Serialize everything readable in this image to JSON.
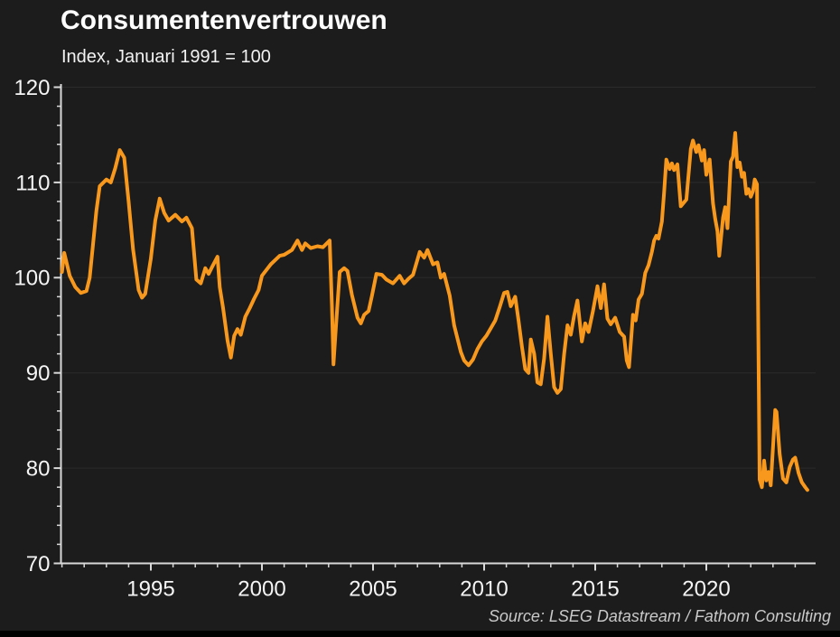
{
  "header": {
    "title": "Consumentenvertrouwen",
    "subtitle": "Index, Januari 1991 = 100"
  },
  "footer": {
    "source": "Source: LSEG Datastream / Fathom Consulting"
  },
  "colors": {
    "background": "#1c1c1c",
    "line": "#F8991D",
    "axis": "#d9d9d9",
    "grid": "#2b2b2b",
    "tick_label": "#f5f5f5",
    "title_text": "#ffffff",
    "source_text": "#c9c9c9",
    "bottom_bar": "#000000"
  },
  "chart_data": {
    "type": "line",
    "title": "Consumentenvertrouwen",
    "subtitle": "Index, Januari 1991 = 100",
    "source": "Source: LSEG Datastream / Fathom Consulting",
    "legend": "none",
    "grid": "faint horizontal lines at major y ticks",
    "x_axis": {
      "range": [
        1991,
        2025
      ],
      "major_ticks": [
        1995,
        2000,
        2005,
        2010,
        2015,
        2020
      ],
      "minor_tick_step_years": 1
    },
    "y_axis": {
      "labeled_range": [
        70,
        120
      ],
      "major_ticks": [
        70,
        80,
        90,
        100,
        110,
        120
      ],
      "minor_tick_step": 2
    },
    "series": [
      {
        "name": "Consumentenvertrouwen (index, Januari 1991 = 100)",
        "color": "#F8991D",
        "points": [
          [
            1991.0,
            100.6
          ],
          [
            1991.1,
            102.6
          ],
          [
            1991.35,
            100.2
          ],
          [
            1991.6,
            99.0
          ],
          [
            1991.85,
            98.4
          ],
          [
            1992.1,
            98.6
          ],
          [
            1992.25,
            100.0
          ],
          [
            1992.4,
            103.5
          ],
          [
            1992.55,
            107.0
          ],
          [
            1992.7,
            109.6
          ],
          [
            1993.0,
            110.3
          ],
          [
            1993.2,
            110.0
          ],
          [
            1993.4,
            111.5
          ],
          [
            1993.6,
            113.4
          ],
          [
            1993.8,
            112.6
          ],
          [
            1994.0,
            108.0
          ],
          [
            1994.2,
            103.0
          ],
          [
            1994.45,
            98.7
          ],
          [
            1994.6,
            97.9
          ],
          [
            1994.75,
            98.3
          ],
          [
            1995.0,
            102.0
          ],
          [
            1995.2,
            106.0
          ],
          [
            1995.4,
            108.3
          ],
          [
            1995.6,
            106.8
          ],
          [
            1995.8,
            106.0
          ],
          [
            1996.1,
            106.6
          ],
          [
            1996.4,
            105.9
          ],
          [
            1996.6,
            106.3
          ],
          [
            1996.85,
            105.2
          ],
          [
            1997.05,
            99.8
          ],
          [
            1997.25,
            99.4
          ],
          [
            1997.45,
            101.0
          ],
          [
            1997.6,
            100.4
          ],
          [
            1997.75,
            101.1
          ],
          [
            1998.0,
            102.2
          ],
          [
            1998.1,
            99.0
          ],
          [
            1998.25,
            96.8
          ],
          [
            1998.45,
            93.4
          ],
          [
            1998.6,
            91.6
          ],
          [
            1998.75,
            93.9
          ],
          [
            1998.9,
            94.6
          ],
          [
            1999.05,
            94.0
          ],
          [
            1999.25,
            95.9
          ],
          [
            1999.45,
            96.8
          ],
          [
            1999.65,
            97.8
          ],
          [
            1999.85,
            98.7
          ],
          [
            2000.0,
            100.2
          ],
          [
            2000.4,
            101.4
          ],
          [
            2000.8,
            102.3
          ],
          [
            2001.0,
            102.4
          ],
          [
            2001.35,
            102.9
          ],
          [
            2001.6,
            103.9
          ],
          [
            2001.8,
            102.9
          ],
          [
            2001.95,
            103.6
          ],
          [
            2002.2,
            103.1
          ],
          [
            2002.5,
            103.3
          ],
          [
            2002.75,
            103.2
          ],
          [
            2003.05,
            103.9
          ],
          [
            2003.15,
            97.0
          ],
          [
            2003.22,
            90.9
          ],
          [
            2003.35,
            95.5
          ],
          [
            2003.5,
            100.6
          ],
          [
            2003.7,
            101.0
          ],
          [
            2003.85,
            100.7
          ],
          [
            2004.05,
            98.2
          ],
          [
            2004.3,
            95.8
          ],
          [
            2004.45,
            95.2
          ],
          [
            2004.6,
            96.1
          ],
          [
            2004.8,
            96.5
          ],
          [
            2004.95,
            98.1
          ],
          [
            2005.15,
            100.4
          ],
          [
            2005.4,
            100.3
          ],
          [
            2005.6,
            99.8
          ],
          [
            2005.9,
            99.4
          ],
          [
            2006.2,
            100.2
          ],
          [
            2006.4,
            99.4
          ],
          [
            2006.6,
            99.9
          ],
          [
            2006.8,
            100.3
          ],
          [
            2007.1,
            102.7
          ],
          [
            2007.3,
            102.1
          ],
          [
            2007.45,
            102.9
          ],
          [
            2007.7,
            101.4
          ],
          [
            2007.9,
            101.6
          ],
          [
            2008.05,
            100.0
          ],
          [
            2008.2,
            100.4
          ],
          [
            2008.45,
            98.1
          ],
          [
            2008.65,
            95.0
          ],
          [
            2008.95,
            92.2
          ],
          [
            2009.1,
            91.3
          ],
          [
            2009.3,
            90.8
          ],
          [
            2009.5,
            91.4
          ],
          [
            2009.7,
            92.5
          ],
          [
            2009.9,
            93.3
          ],
          [
            2010.1,
            93.9
          ],
          [
            2010.3,
            94.7
          ],
          [
            2010.5,
            95.5
          ],
          [
            2010.7,
            96.9
          ],
          [
            2010.9,
            98.4
          ],
          [
            2011.05,
            98.5
          ],
          [
            2011.2,
            97.0
          ],
          [
            2011.4,
            98.0
          ],
          [
            2011.55,
            95.5
          ],
          [
            2011.7,
            92.8
          ],
          [
            2011.85,
            90.4
          ],
          [
            2012.0,
            90.0
          ],
          [
            2012.1,
            93.5
          ],
          [
            2012.25,
            92.0
          ],
          [
            2012.4,
            89.0
          ],
          [
            2012.55,
            88.8
          ],
          [
            2012.7,
            91.5
          ],
          [
            2012.85,
            95.9
          ],
          [
            2013.0,
            92.0
          ],
          [
            2013.15,
            88.5
          ],
          [
            2013.3,
            87.9
          ],
          [
            2013.45,
            88.3
          ],
          [
            2013.6,
            92.0
          ],
          [
            2013.75,
            95.0
          ],
          [
            2013.9,
            94.0
          ],
          [
            2014.05,
            96.0
          ],
          [
            2014.2,
            97.6
          ],
          [
            2014.4,
            93.3
          ],
          [
            2014.55,
            95.2
          ],
          [
            2014.7,
            94.3
          ],
          [
            2014.9,
            96.5
          ],
          [
            2015.1,
            99.1
          ],
          [
            2015.25,
            96.8
          ],
          [
            2015.4,
            99.3
          ],
          [
            2015.55,
            95.7
          ],
          [
            2015.7,
            95.1
          ],
          [
            2015.9,
            95.8
          ],
          [
            2016.1,
            94.3
          ],
          [
            2016.3,
            93.8
          ],
          [
            2016.42,
            91.3
          ],
          [
            2016.52,
            90.6
          ],
          [
            2016.7,
            96.1
          ],
          [
            2016.82,
            95.5
          ],
          [
            2016.95,
            97.7
          ],
          [
            2017.1,
            98.3
          ],
          [
            2017.25,
            100.5
          ],
          [
            2017.4,
            101.3
          ],
          [
            2017.55,
            102.7
          ],
          [
            2017.65,
            103.9
          ],
          [
            2017.75,
            104.4
          ],
          [
            2017.85,
            104.1
          ],
          [
            2018.0,
            105.9
          ],
          [
            2018.1,
            109.0
          ],
          [
            2018.2,
            112.4
          ],
          [
            2018.35,
            111.4
          ],
          [
            2018.45,
            112.0
          ],
          [
            2018.55,
            111.3
          ],
          [
            2018.7,
            111.9
          ],
          [
            2018.85,
            107.5
          ],
          [
            2019.1,
            108.2
          ],
          [
            2019.3,
            113.5
          ],
          [
            2019.4,
            114.4
          ],
          [
            2019.55,
            113.2
          ],
          [
            2019.65,
            113.9
          ],
          [
            2019.8,
            112.3
          ],
          [
            2019.9,
            113.4
          ],
          [
            2020.0,
            110.8
          ],
          [
            2020.15,
            112.4
          ],
          [
            2020.3,
            107.8
          ],
          [
            2020.4,
            106.2
          ],
          [
            2020.5,
            104.9
          ],
          [
            2020.58,
            102.3
          ],
          [
            2020.75,
            106.3
          ],
          [
            2020.85,
            107.4
          ],
          [
            2020.95,
            105.2
          ],
          [
            2021.1,
            112.2
          ],
          [
            2021.2,
            112.7
          ],
          [
            2021.3,
            115.2
          ],
          [
            2021.4,
            111.6
          ],
          [
            2021.5,
            112.1
          ],
          [
            2021.6,
            110.6
          ],
          [
            2021.7,
            111.0
          ],
          [
            2021.8,
            108.8
          ],
          [
            2021.9,
            109.3
          ],
          [
            2022.0,
            108.5
          ],
          [
            2022.1,
            109.1
          ],
          [
            2022.18,
            110.3
          ],
          [
            2022.28,
            109.8
          ],
          [
            2022.4,
            78.8
          ],
          [
            2022.5,
            78.0
          ],
          [
            2022.6,
            80.8
          ],
          [
            2022.7,
            78.7
          ],
          [
            2022.8,
            79.6
          ],
          [
            2022.9,
            78.2
          ],
          [
            2023.1,
            86.1
          ],
          [
            2023.16,
            85.9
          ],
          [
            2023.3,
            81.5
          ],
          [
            2023.45,
            78.9
          ],
          [
            2023.6,
            78.5
          ],
          [
            2023.75,
            80.1
          ],
          [
            2023.9,
            80.9
          ],
          [
            2024.0,
            81.1
          ],
          [
            2024.15,
            79.5
          ],
          [
            2024.3,
            78.5
          ],
          [
            2024.45,
            78.0
          ],
          [
            2024.55,
            77.7
          ]
        ]
      }
    ]
  }
}
